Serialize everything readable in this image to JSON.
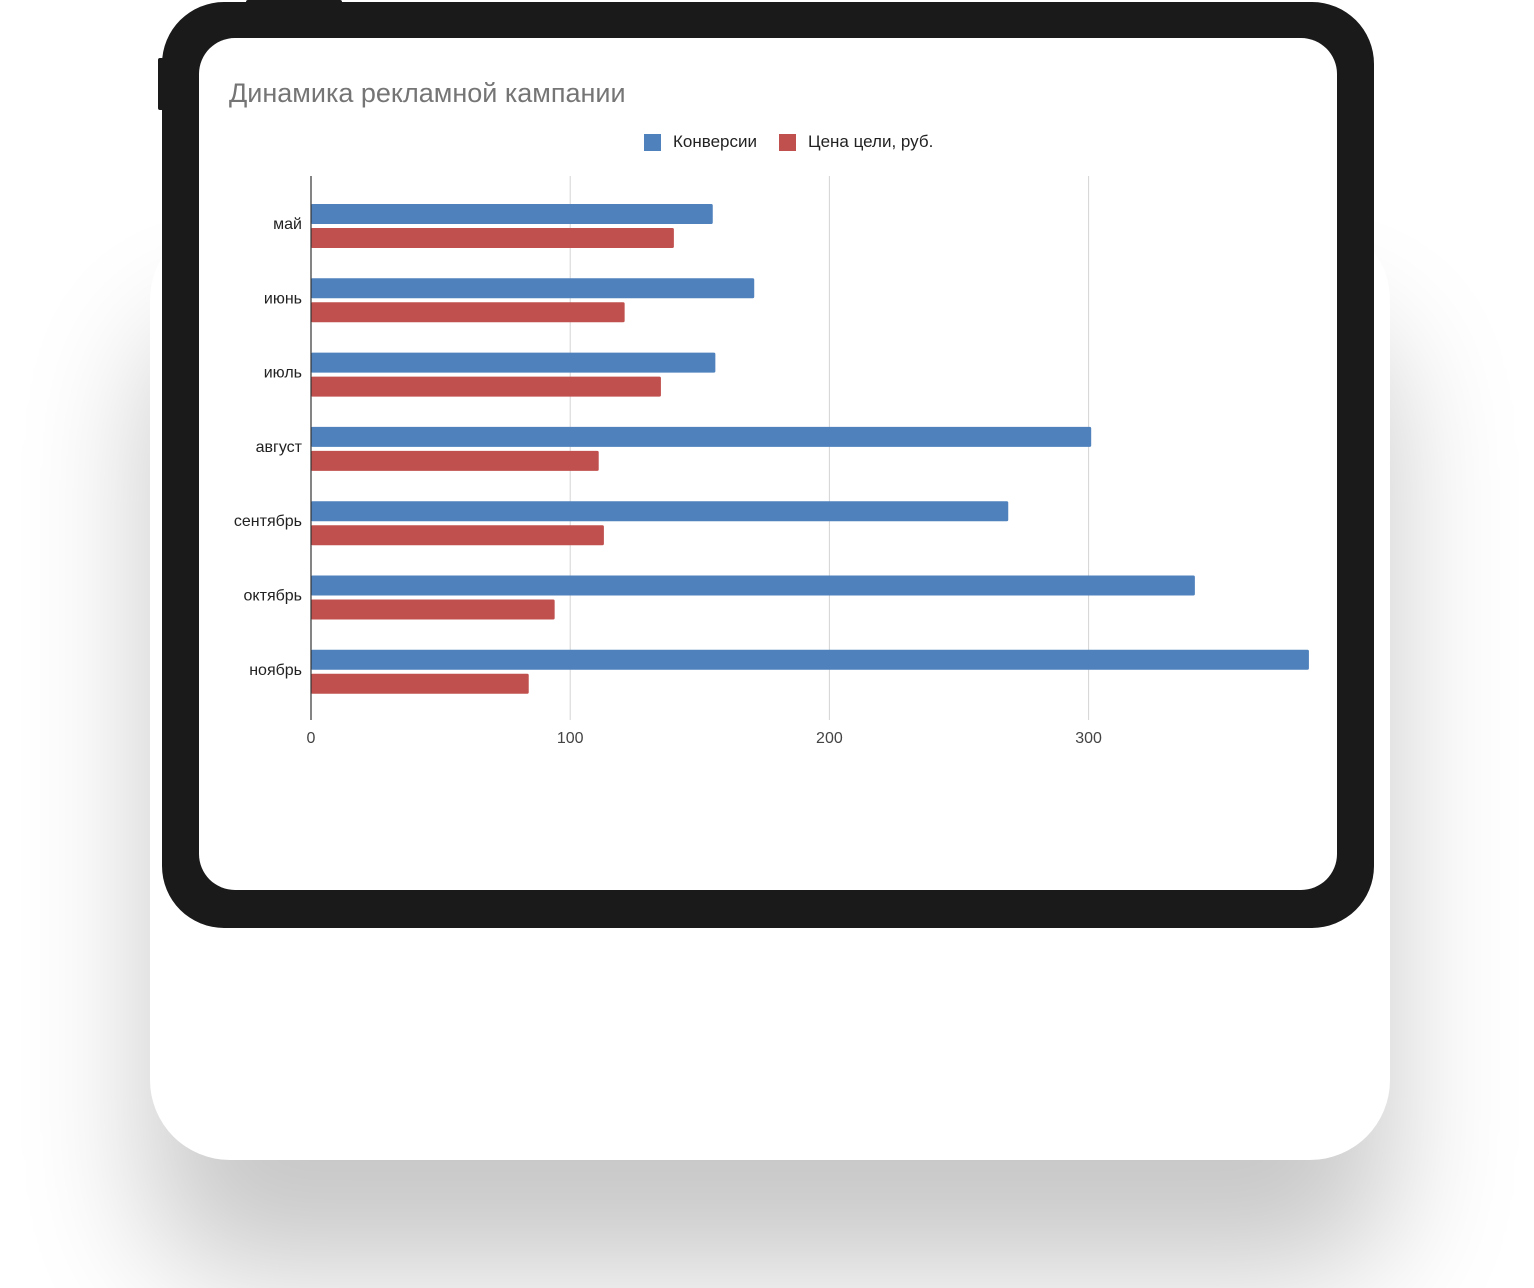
{
  "chart_data": {
    "type": "bar",
    "orientation": "horizontal",
    "title": "Динамика рекламной кампании",
    "categories": [
      "май",
      "июнь",
      "июль",
      "август",
      "сентябрь",
      "октябрь",
      "ноябрь"
    ],
    "series": [
      {
        "name": "Конверсии",
        "color": "#4f81bd",
        "values": [
          155,
          171,
          156,
          301,
          269,
          341,
          385
        ]
      },
      {
        "name": "Цена цели, руб.",
        "color": "#c0504d",
        "values": [
          140,
          121,
          135,
          111,
          113,
          94,
          84
        ]
      }
    ],
    "xlim": [
      0,
      385
    ],
    "x_ticks": [
      0,
      100,
      200,
      300
    ],
    "grid": true,
    "legend": "top-center"
  }
}
